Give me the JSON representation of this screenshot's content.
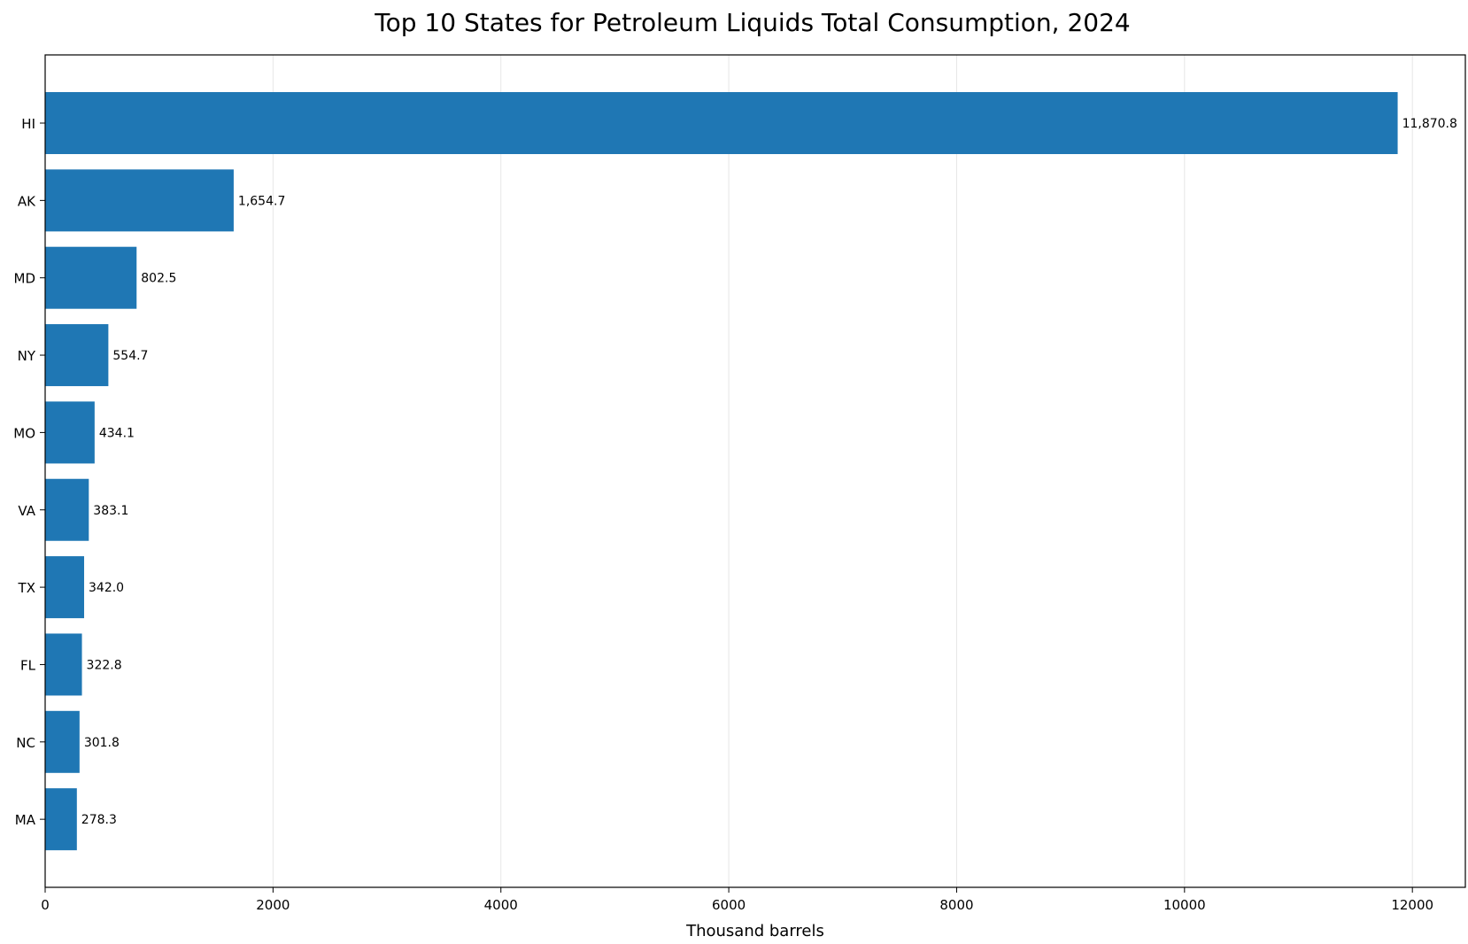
{
  "chart_data": {
    "type": "bar",
    "orientation": "horizontal",
    "title": "Top 10 States for Petroleum Liquids Total Consumption, 2024",
    "xlabel": "Thousand barrels",
    "ylabel": "",
    "categories": [
      "HI",
      "AK",
      "MD",
      "NY",
      "MO",
      "VA",
      "TX",
      "FL",
      "NC",
      "MA"
    ],
    "values": [
      11870.8,
      1654.7,
      802.5,
      554.7,
      434.1,
      383.1,
      342.0,
      322.8,
      301.8,
      278.3
    ],
    "value_labels": [
      "11,870.8",
      "1,654.7",
      "802.5",
      "554.7",
      "434.1",
      "383.1",
      "342.0",
      "322.8",
      "301.8",
      "278.3"
    ],
    "x_ticks": [
      0,
      2000,
      4000,
      6000,
      8000,
      10000,
      12000
    ],
    "x_tick_labels": [
      "0",
      "2000",
      "4000",
      "6000",
      "8000",
      "10000",
      "12000"
    ],
    "xlim": [
      0,
      12464.8
    ],
    "grid": "x-axis only",
    "bar_color": "#1f77b4"
  }
}
